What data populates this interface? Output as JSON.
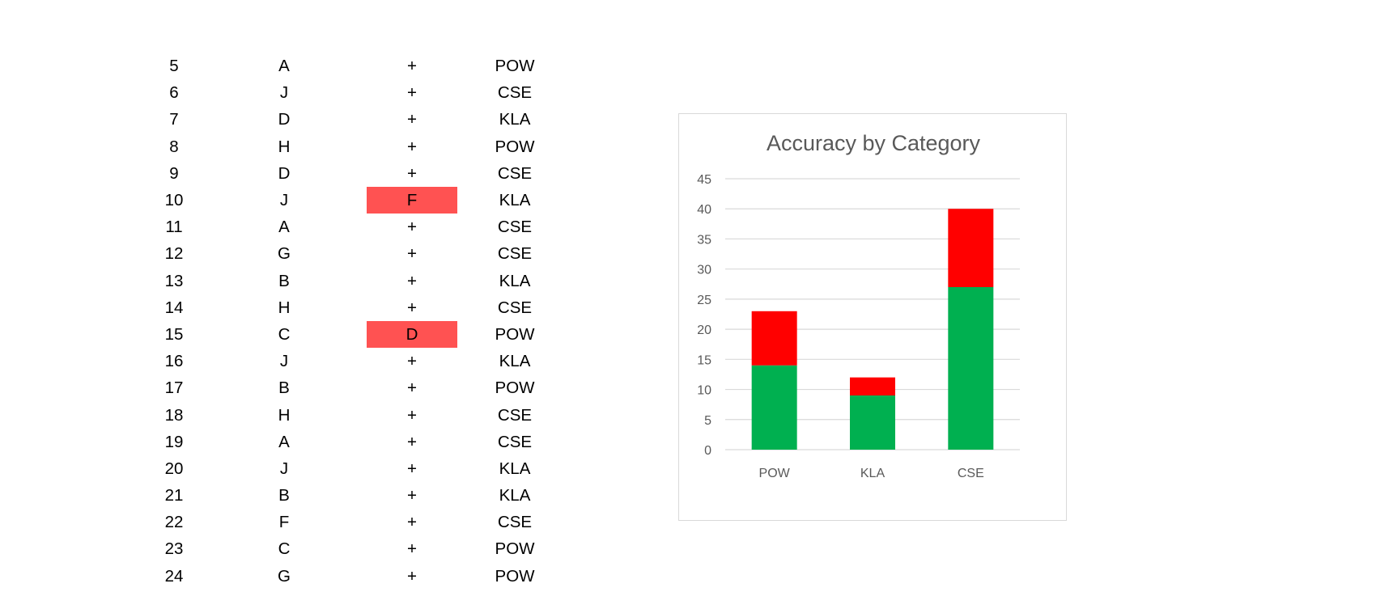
{
  "table": {
    "rows": [
      {
        "num": "5",
        "letter": "A",
        "mark": "+",
        "cat": "POW",
        "flagged": false
      },
      {
        "num": "6",
        "letter": "J",
        "mark": "+",
        "cat": "CSE",
        "flagged": false
      },
      {
        "num": "7",
        "letter": "D",
        "mark": "+",
        "cat": "KLA",
        "flagged": false
      },
      {
        "num": "8",
        "letter": "H",
        "mark": "+",
        "cat": "POW",
        "flagged": false
      },
      {
        "num": "9",
        "letter": "D",
        "mark": "+",
        "cat": "CSE",
        "flagged": false
      },
      {
        "num": "10",
        "letter": "J",
        "mark": "F",
        "cat": "KLA",
        "flagged": true
      },
      {
        "num": "11",
        "letter": "A",
        "mark": "+",
        "cat": "CSE",
        "flagged": false
      },
      {
        "num": "12",
        "letter": "G",
        "mark": "+",
        "cat": "CSE",
        "flagged": false
      },
      {
        "num": "13",
        "letter": "B",
        "mark": "+",
        "cat": "KLA",
        "flagged": false
      },
      {
        "num": "14",
        "letter": "H",
        "mark": "+",
        "cat": "CSE",
        "flagged": false
      },
      {
        "num": "15",
        "letter": "C",
        "mark": "D",
        "cat": "POW",
        "flagged": true
      },
      {
        "num": "16",
        "letter": "J",
        "mark": "+",
        "cat": "KLA",
        "flagged": false
      },
      {
        "num": "17",
        "letter": "B",
        "mark": "+",
        "cat": "POW",
        "flagged": false
      },
      {
        "num": "18",
        "letter": "H",
        "mark": "+",
        "cat": "CSE",
        "flagged": false
      },
      {
        "num": "19",
        "letter": "A",
        "mark": "+",
        "cat": "CSE",
        "flagged": false
      },
      {
        "num": "20",
        "letter": "J",
        "mark": "+",
        "cat": "KLA",
        "flagged": false
      },
      {
        "num": "21",
        "letter": "B",
        "mark": "+",
        "cat": "KLA",
        "flagged": false
      },
      {
        "num": "22",
        "letter": "F",
        "mark": "+",
        "cat": "CSE",
        "flagged": false
      },
      {
        "num": "23",
        "letter": "C",
        "mark": "+",
        "cat": "POW",
        "flagged": false
      },
      {
        "num": "24",
        "letter": "G",
        "mark": "+",
        "cat": "POW",
        "flagged": false
      }
    ],
    "flag_color": "#ff5252"
  },
  "chart_data": {
    "type": "bar",
    "stacked": true,
    "title": "Accuracy by Category",
    "categories": [
      "POW",
      "KLA",
      "CSE"
    ],
    "series": [
      {
        "values": [
          14,
          9,
          27
        ],
        "color": "#00b050"
      },
      {
        "values": [
          9,
          3,
          13
        ],
        "color": "#ff0000"
      }
    ],
    "ylim": [
      0,
      45
    ],
    "yticks": [
      "0",
      "5",
      "10",
      "15",
      "20",
      "25",
      "30",
      "35",
      "40",
      "45"
    ],
    "grid": true,
    "legend": "none"
  }
}
